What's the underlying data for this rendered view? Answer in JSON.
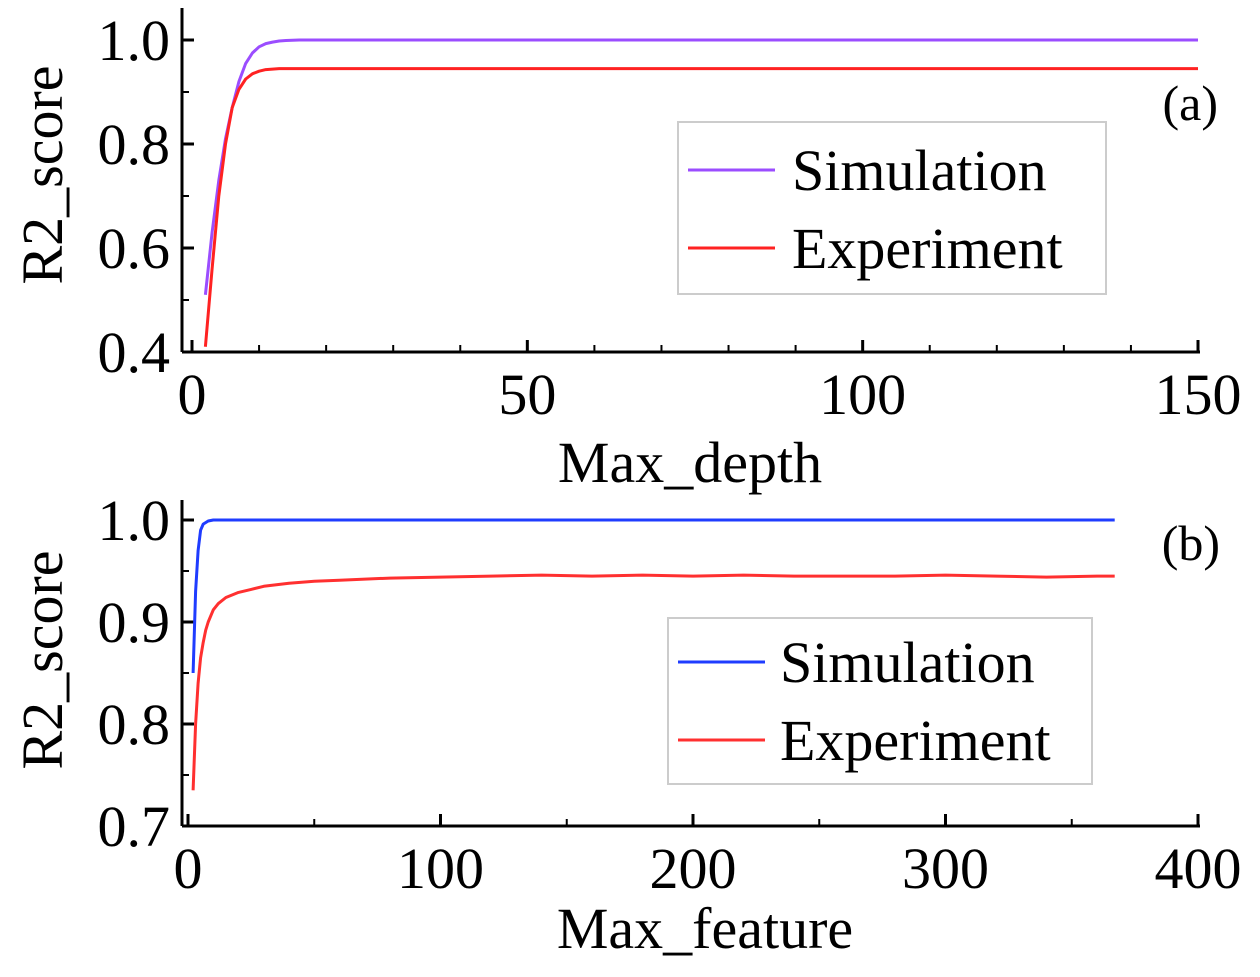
{
  "colors": {
    "simulation_a": "#9b4dff",
    "experiment_a": "#ff2222",
    "simulation_b": "#1f3cff",
    "experiment_b": "#ff3030",
    "axis": "#000000",
    "legend_border": "#cccccc"
  },
  "chart_data": [
    {
      "type": "line",
      "panel_label": "(a)",
      "title": "",
      "xlabel": "Max_depth",
      "ylabel": "R2_score",
      "xlim": [
        0,
        150
      ],
      "ylim": [
        0.4,
        1.0
      ],
      "xticks": [
        0,
        50,
        100,
        150
      ],
      "xtick_labels": [
        "0",
        "50",
        "100",
        "150"
      ],
      "yticks": [
        0.4,
        0.6,
        0.8,
        1.0
      ],
      "ytick_labels": [
        "0.4",
        "0.6",
        "0.8",
        "1.0"
      ],
      "legend": "center-right",
      "grid": false,
      "series": [
        {
          "name": "Simulation",
          "x": [
            2,
            3,
            4,
            5,
            6,
            7,
            8,
            9,
            10,
            11,
            12,
            13,
            14,
            16,
            20,
            30,
            50,
            100,
            150
          ],
          "y": [
            0.51,
            0.63,
            0.73,
            0.81,
            0.87,
            0.92,
            0.955,
            0.975,
            0.987,
            0.993,
            0.996,
            0.998,
            0.999,
            1.0,
            1.0,
            1.0,
            1.0,
            1.0,
            1.0
          ]
        },
        {
          "name": "Experiment",
          "x": [
            2,
            3,
            4,
            5,
            6,
            7,
            8,
            9,
            10,
            11,
            12,
            13,
            14,
            16,
            20,
            30,
            50,
            100,
            150
          ],
          "y": [
            0.41,
            0.56,
            0.7,
            0.8,
            0.87,
            0.905,
            0.925,
            0.935,
            0.94,
            0.943,
            0.944,
            0.945,
            0.945,
            0.945,
            0.945,
            0.945,
            0.945,
            0.945,
            0.945
          ]
        }
      ]
    },
    {
      "type": "line",
      "panel_label": "(b)",
      "title": "",
      "xlabel": "Max_feature",
      "ylabel": "R2_score",
      "xlim": [
        0,
        400
      ],
      "ylim": [
        0.7,
        1.0
      ],
      "xticks": [
        0,
        100,
        200,
        300,
        400
      ],
      "xtick_labels": [
        "0",
        "100",
        "200",
        "300",
        "400"
      ],
      "yticks": [
        0.7,
        0.8,
        0.9,
        1.0
      ],
      "ytick_labels": [
        "0.7",
        "0.8",
        "0.9",
        "1.0"
      ],
      "legend": "center-right",
      "grid": false,
      "series": [
        {
          "name": "Simulation",
          "x": [
            2,
            3,
            4,
            5,
            6,
            8,
            10,
            15,
            20,
            50,
            100,
            200,
            300,
            367
          ],
          "y": [
            0.85,
            0.93,
            0.97,
            0.99,
            0.996,
            0.999,
            1.0,
            1.0,
            1.0,
            1.0,
            1.0,
            1.0,
            1.0,
            1.0
          ]
        },
        {
          "name": "Experiment",
          "x": [
            2,
            3,
            4,
            5,
            6,
            7,
            8,
            10,
            12,
            15,
            20,
            25,
            30,
            40,
            50,
            60,
            80,
            100,
            120,
            140,
            160,
            180,
            200,
            220,
            240,
            260,
            280,
            300,
            320,
            340,
            360,
            367
          ],
          "y": [
            0.735,
            0.8,
            0.84,
            0.865,
            0.88,
            0.892,
            0.9,
            0.912,
            0.918,
            0.924,
            0.929,
            0.932,
            0.935,
            0.938,
            0.94,
            0.941,
            0.943,
            0.944,
            0.945,
            0.946,
            0.945,
            0.946,
            0.945,
            0.946,
            0.945,
            0.945,
            0.945,
            0.946,
            0.945,
            0.944,
            0.945,
            0.945
          ]
        }
      ]
    }
  ]
}
